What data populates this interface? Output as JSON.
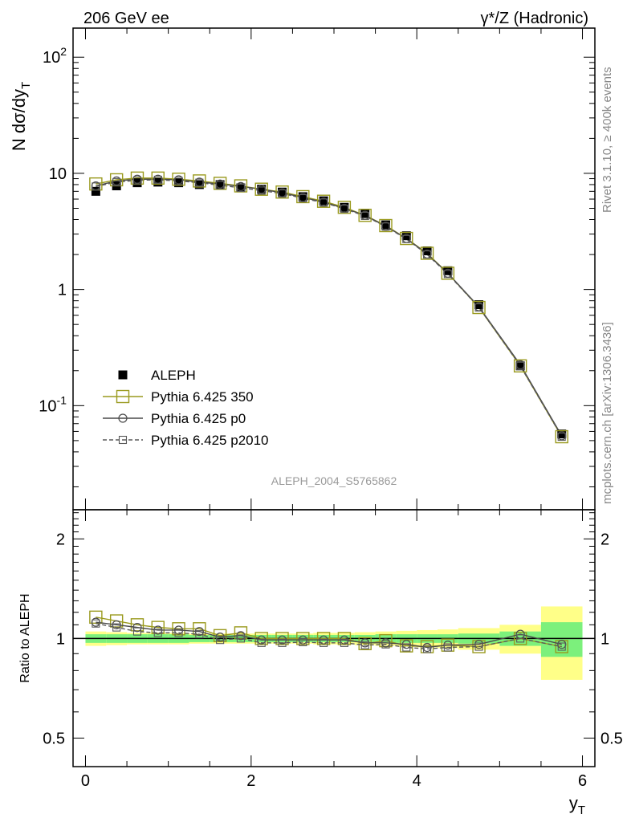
{
  "header": {
    "left_title": "206 GeV ee",
    "right_title": "γ*/Z (Hadronic)"
  },
  "side_labels": {
    "rivet": "Rivet 3.1.10, ≥ 400k events",
    "mcplots": "mcplots.cern.ch [arXiv:1306.3436]"
  },
  "analysis_id": "ALEPH_2004_S5765862",
  "colors": {
    "data": "#000000",
    "mc350": "#9a9a1e",
    "p0": "#4a4a4a",
    "p2010": "#5a5a5a",
    "band_inner": "#7cf07c",
    "band_outer": "#ffff88"
  },
  "chart_data": [
    {
      "type": "scatter",
      "panel": "main",
      "ylabel": "N dσ/dy_T",
      "y_scale": "log",
      "ylim": [
        0.0127,
        178
      ],
      "y_ticks": [
        "10^-1",
        "1",
        "10",
        "10^2"
      ],
      "x": [
        0.125,
        0.375,
        0.625,
        0.875,
        1.125,
        1.375,
        1.625,
        1.875,
        2.125,
        2.375,
        2.625,
        2.875,
        3.125,
        3.375,
        3.625,
        3.875,
        4.125,
        4.375,
        4.75,
        5.25,
        5.75
      ],
      "series": [
        {
          "name": "ALEPH",
          "values": [
            7.0,
            7.8,
            8.3,
            8.4,
            8.3,
            8.0,
            8.0,
            7.5,
            7.3,
            6.9,
            6.3,
            5.8,
            5.1,
            4.5,
            3.6,
            2.9,
            2.15,
            1.45,
            0.74,
            0.22,
            0.057
          ]
        },
        {
          "name": "Pythia 6.425 350",
          "values": [
            8.1,
            8.8,
            9.1,
            9.1,
            8.9,
            8.6,
            8.2,
            7.8,
            7.3,
            6.9,
            6.3,
            5.75,
            5.1,
            4.35,
            3.55,
            2.75,
            2.05,
            1.38,
            0.7,
            0.22,
            0.054
          ]
        },
        {
          "name": "Pythia 6.425 p0",
          "values": [
            7.8,
            8.6,
            8.9,
            8.9,
            8.8,
            8.4,
            8.1,
            7.7,
            7.3,
            6.8,
            6.2,
            5.65,
            5.0,
            4.35,
            3.5,
            2.75,
            2.02,
            1.38,
            0.71,
            0.225,
            0.055
          ]
        },
        {
          "name": "Pythia 6.425 p2010",
          "values": [
            7.7,
            8.4,
            8.7,
            8.8,
            8.6,
            8.3,
            7.9,
            7.5,
            7.1,
            6.7,
            6.1,
            5.6,
            4.95,
            4.3,
            3.48,
            2.72,
            2.0,
            1.36,
            0.7,
            0.22,
            0.054
          ]
        }
      ]
    },
    {
      "type": "scatter",
      "panel": "ratio",
      "xlabel": "y_T",
      "ylabel": "Ratio to ALEPH",
      "y_scale": "log",
      "ylim": [
        0.41,
        2.45
      ],
      "y_ticks": [
        "0.5",
        "1",
        "2"
      ],
      "xlim": [
        -0.15,
        6.15
      ],
      "x_ticks": [
        "0",
        "2",
        "4",
        "6"
      ],
      "bin_edges": [
        0,
        0.25,
        0.5,
        0.75,
        1.0,
        1.25,
        1.5,
        1.75,
        2.0,
        2.25,
        2.5,
        2.75,
        3.0,
        3.25,
        3.5,
        3.75,
        4.0,
        4.25,
        4.5,
        5.0,
        5.5,
        6.0
      ],
      "band_inner_halfwidth": [
        0.03,
        0.03,
        0.03,
        0.03,
        0.03,
        0.025,
        0.025,
        0.025,
        0.025,
        0.025,
        0.025,
        0.025,
        0.025,
        0.025,
        0.03,
        0.03,
        0.03,
        0.03,
        0.035,
        0.05,
        0.12
      ],
      "band_outer_halfwidth": [
        0.05,
        0.045,
        0.04,
        0.04,
        0.04,
        0.035,
        0.035,
        0.035,
        0.035,
        0.035,
        0.035,
        0.04,
        0.04,
        0.045,
        0.05,
        0.055,
        0.06,
        0.065,
        0.075,
        0.1,
        0.25
      ],
      "x": [
        0.125,
        0.375,
        0.625,
        0.875,
        1.125,
        1.375,
        1.625,
        1.875,
        2.125,
        2.375,
        2.625,
        2.875,
        3.125,
        3.375,
        3.625,
        3.875,
        4.125,
        4.375,
        4.75,
        5.25,
        5.75
      ],
      "series": [
        {
          "name": "Pythia 6.425 350",
          "values": [
            1.16,
            1.13,
            1.1,
            1.08,
            1.07,
            1.07,
            1.02,
            1.04,
            1.0,
            1.0,
            1.0,
            1.0,
            1.0,
            0.965,
            0.985,
            0.95,
            0.945,
            0.955,
            0.945,
            1.0,
            0.945
          ]
        },
        {
          "name": "Pythia 6.425 p0",
          "values": [
            1.12,
            1.1,
            1.08,
            1.06,
            1.06,
            1.05,
            1.01,
            1.02,
            0.99,
            0.99,
            0.99,
            0.99,
            0.99,
            0.97,
            0.97,
            0.96,
            0.94,
            0.955,
            0.96,
            1.03,
            0.96
          ]
        },
        {
          "name": "Pythia 6.425 p2010",
          "values": [
            1.11,
            1.08,
            1.05,
            1.04,
            1.04,
            1.03,
            0.99,
            1.0,
            0.97,
            0.97,
            0.975,
            0.97,
            0.97,
            0.955,
            0.96,
            0.94,
            0.93,
            0.94,
            0.945,
            1.0,
            0.945
          ]
        }
      ]
    }
  ]
}
